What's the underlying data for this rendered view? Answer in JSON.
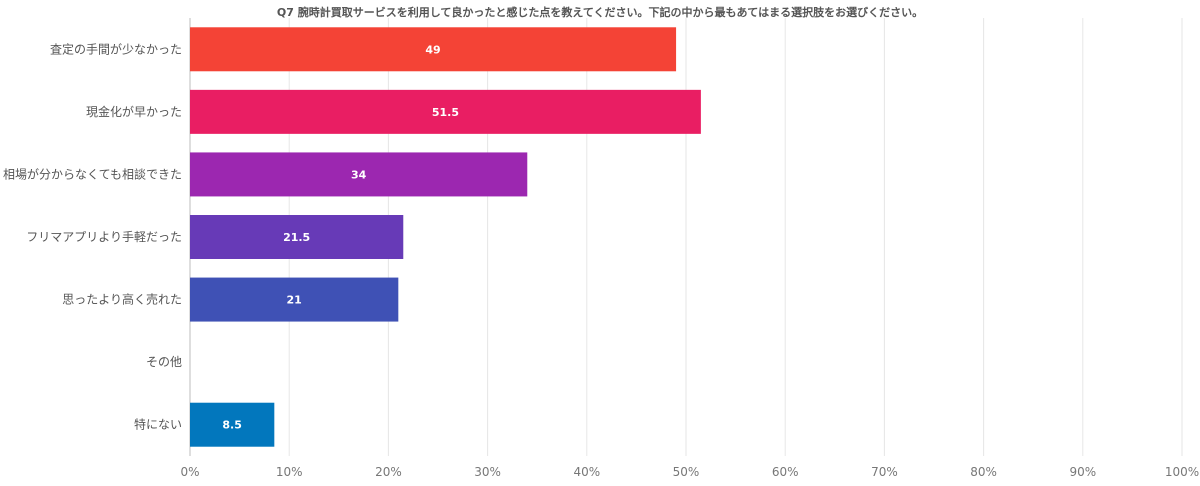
{
  "chart_data": {
    "type": "bar",
    "orientation": "horizontal",
    "title": "Q7 腕時計買取サービスを利用して良かったと感じた点を教えてください。下記の中から最もあてはまる選択肢をお選びください。",
    "categories": [
      "査定の手間が少なかった",
      "現金化が早かった",
      "相場が分からなくても相談できた",
      "フリマアプリより手軽だった",
      "思ったより高く売れた",
      "その他",
      "特にない"
    ],
    "values": [
      49,
      51.5,
      34,
      21.5,
      21,
      0,
      8.5
    ],
    "data_labels": [
      "49",
      "51.5",
      "34",
      "21.5",
      "21",
      "",
      "8.5"
    ],
    "colors": [
      "#f44336",
      "#e91e63",
      "#9c27b0",
      "#673ab7",
      "#3f51b5",
      "#03a9f4",
      "#0277bd"
    ],
    "xlim": [
      0,
      100
    ],
    "xticks": [
      0,
      10,
      20,
      30,
      40,
      50,
      60,
      70,
      80,
      90,
      100
    ],
    "xtick_labels": [
      "0%",
      "10%",
      "20%",
      "30%",
      "40%",
      "50%",
      "60%",
      "70%",
      "80%",
      "90%",
      "100%"
    ],
    "grid": true,
    "legend": "none",
    "xlabel": "",
    "ylabel": ""
  }
}
